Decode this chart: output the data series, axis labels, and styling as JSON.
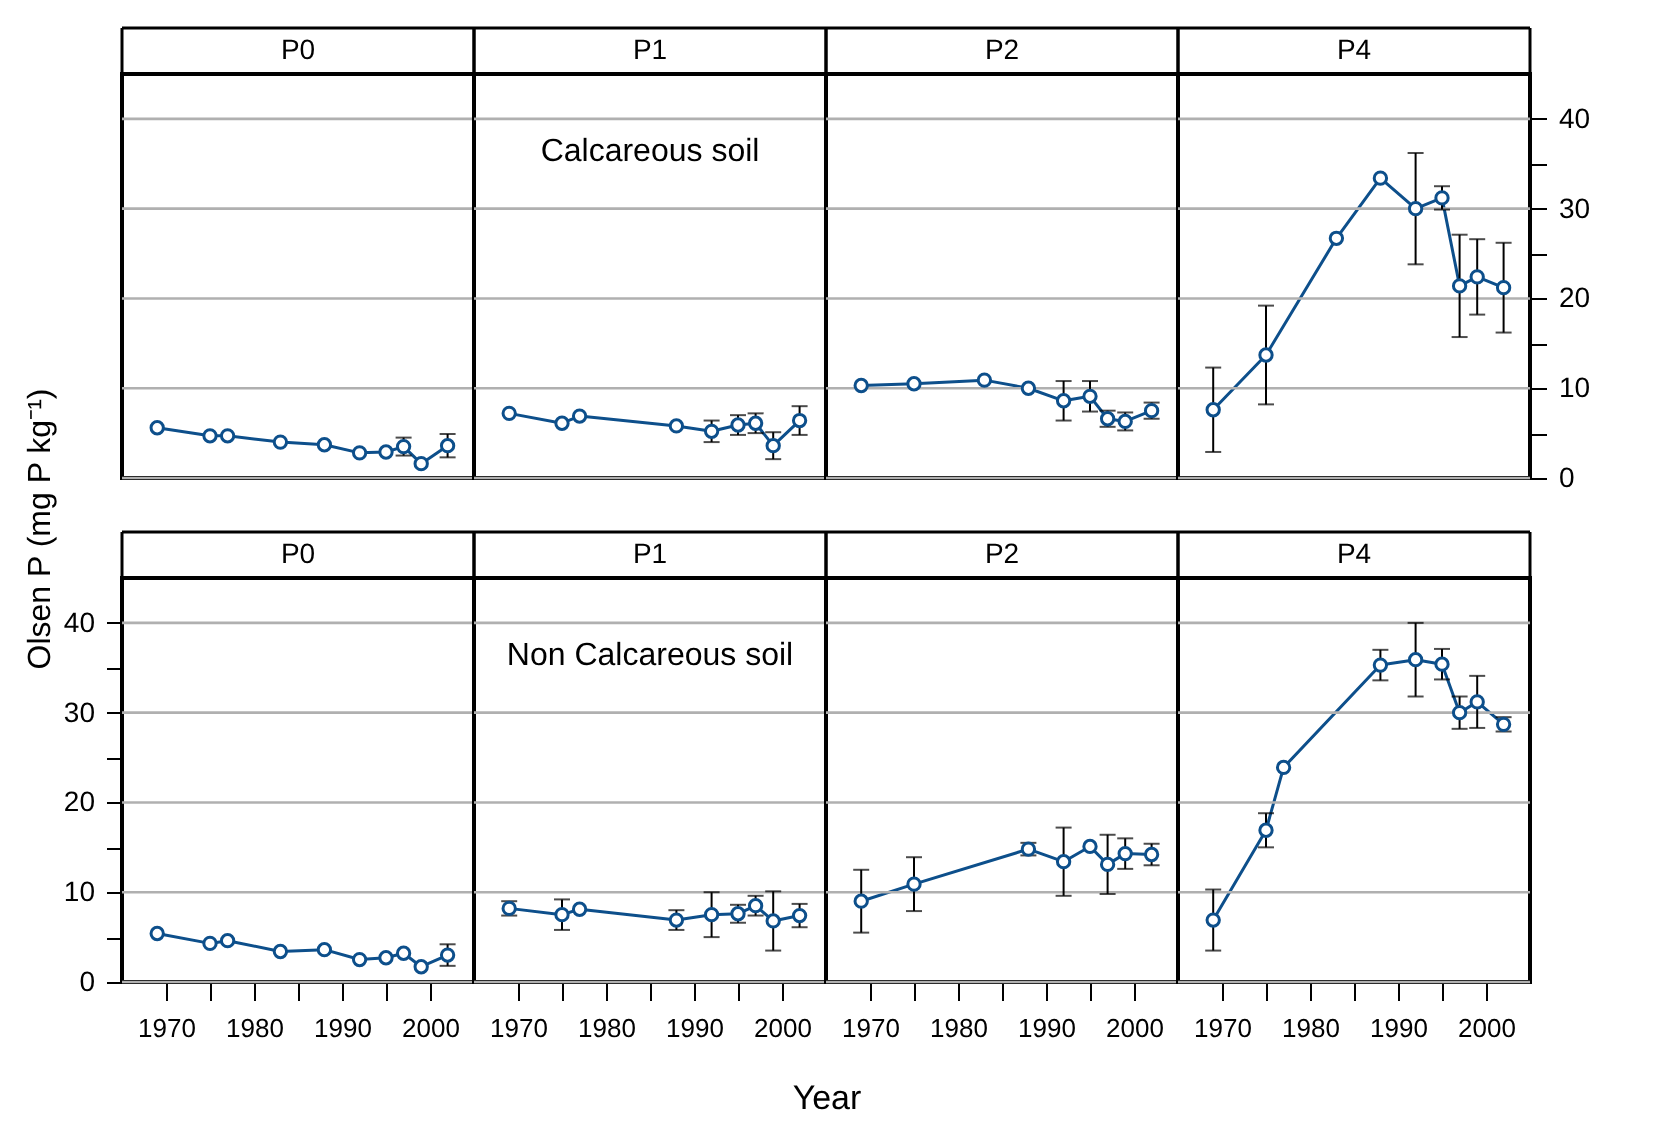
{
  "chart_data": [
    {
      "type": "line",
      "title": "P0",
      "x": [
        1969,
        1975,
        1977,
        1983,
        1988,
        1992,
        1995,
        1997,
        1999,
        2002
      ],
      "series": [
        {
          "color": "#0d4f8b",
          "values": [
            5.6,
            4.7,
            4.7,
            4.0,
            3.7,
            2.8,
            2.9,
            3.5,
            1.6,
            3.6
          ],
          "errors": [
            null,
            null,
            null,
            null,
            null,
            null,
            null,
            1.0,
            null,
            1.3
          ]
        }
      ],
      "xlim": [
        1965,
        2005
      ],
      "ylim": [
        0,
        45
      ],
      "yticks": [
        0,
        10,
        20,
        30,
        40
      ],
      "grid": "y",
      "marker": "circle",
      "tick_labels": false
    },
    {
      "type": "line",
      "title": "P1",
      "annotations": [
        "Calcareous soil"
      ],
      "x": [
        1969,
        1975,
        1977,
        1988,
        1992,
        1995,
        1997,
        1999,
        2002
      ],
      "series": [
        {
          "color": "#0d4f8b",
          "values": [
            7.2,
            6.1,
            6.9,
            5.8,
            5.2,
            5.9,
            6.1,
            3.6,
            6.4
          ],
          "errors": [
            null,
            null,
            null,
            null,
            1.2,
            1.1,
            1.1,
            1.5,
            1.6
          ]
        }
      ],
      "xlim": [
        1965,
        2005
      ],
      "ylim": [
        0,
        45
      ],
      "yticks": [
        0,
        10,
        20,
        30,
        40
      ],
      "grid": "y",
      "marker": "circle",
      "tick_labels": false
    },
    {
      "type": "line",
      "title": "P2",
      "x": [
        1969,
        1975,
        1983,
        1988,
        1992,
        1995,
        1997,
        1999,
        2002
      ],
      "series": [
        {
          "color": "#0d4f8b",
          "values": [
            10.3,
            10.5,
            10.9,
            10.0,
            8.6,
            9.1,
            6.6,
            6.3,
            7.5
          ],
          "errors": [
            null,
            null,
            null,
            null,
            2.2,
            1.7,
            0.9,
            1.0,
            0.9
          ]
        }
      ],
      "xlim": [
        1965,
        2005
      ],
      "ylim": [
        0,
        45
      ],
      "yticks": [
        0,
        10,
        20,
        30,
        40
      ],
      "grid": "y",
      "marker": "circle",
      "tick_labels": false
    },
    {
      "type": "line",
      "title": "P4",
      "x": [
        1969,
        1975,
        1983,
        1988,
        1992,
        1995,
        1997,
        1999,
        2002
      ],
      "series": [
        {
          "color": "#0d4f8b",
          "values": [
            7.6,
            13.7,
            26.7,
            33.4,
            30.0,
            31.2,
            21.4,
            22.4,
            21.2
          ],
          "errors": [
            4.7,
            5.5,
            null,
            null,
            6.2,
            1.3,
            5.7,
            4.2,
            5.0
          ]
        }
      ],
      "xlim": [
        1965,
        2005
      ],
      "ylim": [
        0,
        45
      ],
      "yticks": [
        0,
        {
          "value": 5,
          "label": null
        },
        10,
        {
          "value": 15,
          "label": null
        },
        20,
        {
          "value": 25,
          "label": null
        },
        30,
        {
          "value": 35,
          "label": null
        },
        40
      ],
      "grid": "y",
      "marker": "circle",
      "tick_labels": "y"
    },
    {
      "type": "line",
      "title": "P0",
      "ylabel": "Olsen P (mg P kg⁻¹)",
      "x": [
        1969,
        1975,
        1977,
        1983,
        1988,
        1992,
        1995,
        1997,
        1999,
        2002
      ],
      "series": [
        {
          "color": "#0d4f8b",
          "values": [
            5.4,
            4.3,
            4.6,
            3.4,
            3.6,
            2.5,
            2.7,
            3.2,
            1.7,
            3.0
          ],
          "errors": [
            null,
            null,
            null,
            null,
            null,
            null,
            null,
            null,
            null,
            1.2
          ]
        }
      ],
      "xlim": [
        1965,
        2005
      ],
      "ylim": [
        0,
        45
      ],
      "xticks": [
        1970,
        {
          "value": 1975,
          "label": null
        },
        1980,
        {
          "value": 1985,
          "label": null
        },
        1990,
        {
          "value": 1995,
          "label": null
        },
        2000
      ],
      "yticks": [
        0,
        {
          "value": 5,
          "label": null
        },
        10,
        {
          "value": 15,
          "label": null
        },
        20,
        {
          "value": 25,
          "label": null
        },
        30,
        {
          "value": 35,
          "label": null
        },
        40
      ],
      "grid": "y",
      "marker": "circle"
    },
    {
      "type": "line",
      "title": "P1",
      "xlabel": "Year",
      "annotations": [
        "Non Calcareous soil"
      ],
      "x": [
        1969,
        1975,
        1977,
        1988,
        1992,
        1995,
        1997,
        1999,
        2002
      ],
      "series": [
        {
          "color": "#0d4f8b",
          "values": [
            8.2,
            7.5,
            8.1,
            6.9,
            7.5,
            7.6,
            8.5,
            6.8,
            7.4
          ],
          "errors": [
            0.8,
            1.7,
            null,
            1.1,
            2.5,
            1.0,
            1.1,
            3.3,
            1.3
          ]
        }
      ],
      "xlim": [
        1965,
        2005
      ],
      "ylim": [
        0,
        45
      ],
      "xticks": [
        1970,
        {
          "value": 1975,
          "label": null
        },
        1980,
        {
          "value": 1985,
          "label": null
        },
        1990,
        {
          "value": 1995,
          "label": null
        },
        2000
      ],
      "yticks": [
        0,
        10,
        20,
        30,
        40
      ],
      "grid": "y",
      "marker": "circle",
      "tick_labels": "x"
    },
    {
      "type": "line",
      "title": "P2",
      "x": [
        1969,
        1975,
        1988,
        1992,
        1995,
        1997,
        1999,
        2002
      ],
      "series": [
        {
          "color": "#0d4f8b",
          "values": [
            9.0,
            10.9,
            14.8,
            13.4,
            15.1,
            13.1,
            14.3,
            14.2
          ],
          "errors": [
            3.5,
            3.0,
            0.7,
            3.8,
            null,
            3.3,
            1.7,
            1.2
          ]
        }
      ],
      "xlim": [
        1965,
        2005
      ],
      "ylim": [
        0,
        45
      ],
      "xticks": [
        1970,
        {
          "value": 1975,
          "label": null
        },
        1980,
        {
          "value": 1985,
          "label": null
        },
        1990,
        {
          "value": 1995,
          "label": null
        },
        2000
      ],
      "yticks": [
        0,
        10,
        20,
        30,
        40
      ],
      "grid": "y",
      "marker": "circle",
      "tick_labels": "x"
    },
    {
      "type": "line",
      "title": "P4",
      "x": [
        1969,
        1975,
        1977,
        1988,
        1992,
        1995,
        1997,
        1999,
        2002
      ],
      "series": [
        {
          "color": "#0d4f8b",
          "values": [
            6.9,
            16.9,
            23.9,
            35.3,
            35.9,
            35.4,
            30.0,
            31.2,
            28.7
          ],
          "errors": [
            3.4,
            1.9,
            null,
            1.7,
            4.1,
            1.7,
            1.8,
            2.9,
            0.8
          ]
        }
      ],
      "xlim": [
        1965,
        2005
      ],
      "ylim": [
        0,
        45
      ],
      "xticks": [
        1970,
        {
          "value": 1975,
          "label": null
        },
        1980,
        {
          "value": 1985,
          "label": null
        },
        1990,
        {
          "value": 1995,
          "label": null
        },
        2000
      ],
      "yticks": [
        0,
        10,
        20,
        30,
        40
      ],
      "grid": "y",
      "marker": "circle",
      "tick_labels": "x"
    }
  ]
}
